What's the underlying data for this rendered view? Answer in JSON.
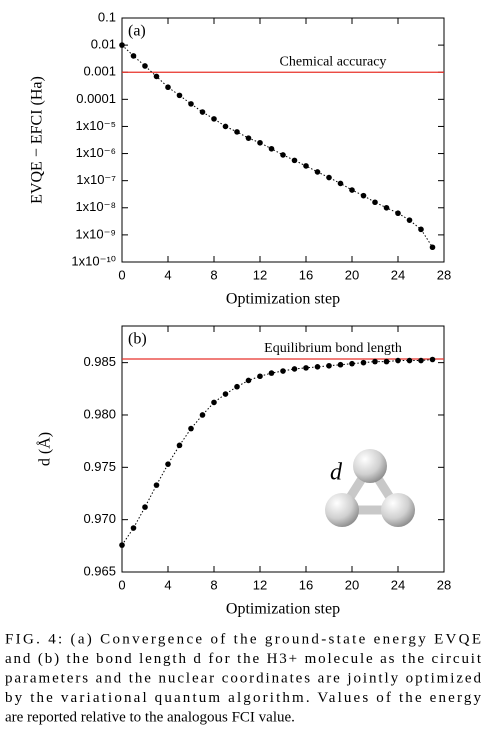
{
  "chart_data": [
    {
      "type": "scatter",
      "panel_label": "(a)",
      "xlabel": "Optimization step",
      "ylabel": "EVQE − EFCI (Ha)",
      "log_y": true,
      "color": "#000000",
      "x": [
        0,
        1,
        2,
        3,
        4,
        5,
        6,
        7,
        8,
        9,
        10,
        11,
        12,
        13,
        14,
        15,
        16,
        17,
        18,
        19,
        20,
        21,
        22,
        23,
        24,
        25,
        26,
        27
      ],
      "values": [
        0.01,
        0.004,
        0.0017,
        0.0007,
        0.00028,
        0.00014,
        6.8e-05,
        3.4e-05,
        1.9e-05,
        1e-05,
        6.3e-06,
        3.7e-06,
        2.5e-06,
        1.5e-06,
        8.9e-07,
        5.6e-07,
        3.5e-07,
        2.1e-07,
        1.3e-07,
        7.9e-08,
        4.5e-08,
        2.8e-08,
        1.6e-08,
        1e-08,
        6.3e-09,
        3.5e-09,
        1.6e-09,
        3.5e-10
      ],
      "xlim": [
        0,
        28
      ],
      "xticks": [
        0,
        4,
        8,
        12,
        16,
        20,
        24,
        28
      ],
      "ylim": [
        1e-10,
        0.1
      ],
      "yticks": [
        0.1,
        0.01,
        0.001,
        0.0001,
        {
          "value": 1e-05,
          "label": "1x10⁻⁵"
        },
        {
          "value": 1e-06,
          "label": "1x10⁻⁶"
        },
        {
          "value": 1e-07,
          "label": "1x10⁻⁷"
        },
        {
          "value": 1e-08,
          "label": "1x10⁻⁸"
        },
        {
          "value": 1e-09,
          "label": "1x10⁻⁹"
        },
        {
          "value": 1e-10,
          "label": "1x10⁻¹⁰"
        }
      ],
      "reference": {
        "value": 0.001,
        "label": "Chemical accuracy",
        "color": "#e8322a"
      }
    },
    {
      "type": "scatter",
      "panel_label": "(b)",
      "xlabel": "Optimization step",
      "ylabel": "d (Å)",
      "log_y": false,
      "color": "#000000",
      "molecule_label": "d",
      "x": [
        0,
        1,
        2,
        3,
        4,
        5,
        6,
        7,
        8,
        9,
        10,
        11,
        12,
        13,
        14,
        15,
        16,
        17,
        18,
        19,
        20,
        21,
        22,
        23,
        24,
        25,
        26,
        27
      ],
      "values": [
        0.96757,
        0.9692,
        0.9712,
        0.9733,
        0.9753,
        0.9771,
        0.9787,
        0.98,
        0.9812,
        0.982,
        0.9827,
        0.9833,
        0.9837,
        0.984,
        0.9842,
        0.9844,
        0.9845,
        0.9846,
        0.9847,
        0.9848,
        0.9849,
        0.985,
        0.9851,
        0.9851,
        0.9852,
        0.9852,
        0.9852,
        0.9853
      ],
      "xlim": [
        0,
        28
      ],
      "xticks": [
        0,
        4,
        8,
        12,
        16,
        20,
        24,
        28
      ],
      "ylim": [
        0.965,
        0.9885
      ],
      "yticks": [
        0.965,
        {
          "value": 0.97,
          "label": "0.970"
        },
        0.975,
        {
          "value": 0.98,
          "label": "0.980"
        },
        0.985
      ],
      "reference": {
        "value": 0.98535,
        "label": "Equilibrium bond length",
        "color": "#e8322a"
      }
    }
  ],
  "caption": [
    "FIG. 4: (a) Convergence of the ground-state energy EVQE",
    "and (b) the bond length d for the H3+ molecule as the circuit",
    "parameters and the nuclear coordinates are jointly optimized",
    "by the variational quantum algorithm. Values of the energy",
    "are reported relative to the analogous FCI value."
  ]
}
